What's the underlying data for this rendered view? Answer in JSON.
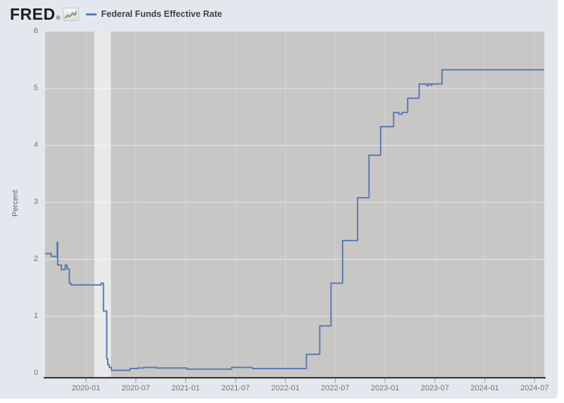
{
  "header": {
    "logo_text": "FRED",
    "registered_mark": "®",
    "logo_icon": "fred-sparkline-icon",
    "legend": {
      "label": "Federal Funds Effective Rate"
    }
  },
  "chart_data": {
    "type": "line",
    "title": "Federal Funds Effective Rate",
    "ylabel": "Percent",
    "xlabel": "",
    "ylim": [
      0,
      6
    ],
    "y_ticks": [
      "0",
      "1",
      "2",
      "3",
      "4",
      "5",
      "6"
    ],
    "x_ticks": [
      "2020-01",
      "2020-07",
      "2021-01",
      "2021-07",
      "2022-01",
      "2022-07",
      "2023-01",
      "2023-07",
      "2024-01",
      "2024-07"
    ],
    "x_range": [
      "2019-08-03",
      "2024-08-06"
    ],
    "grid": "horizontal major gridlines, faint vertical gridlines at ticks",
    "legend_position": "top header, left",
    "step_mode": "after",
    "series": [
      {
        "name": "Federal Funds Effective Rate",
        "units": "Percent",
        "color": "#597db2",
        "points": [
          [
            "2019-08-03",
            2.1
          ],
          [
            "2019-08-26",
            2.05
          ],
          [
            "2019-09-17",
            2.3
          ],
          [
            "2019-09-19",
            1.9
          ],
          [
            "2019-10-02",
            1.82
          ],
          [
            "2019-10-16",
            1.9
          ],
          [
            "2019-10-23",
            1.83
          ],
          [
            "2019-10-31",
            1.58
          ],
          [
            "2019-11-07",
            1.55
          ],
          [
            "2020-02-26",
            1.58
          ],
          [
            "2020-03-04",
            1.09
          ],
          [
            "2020-03-16",
            0.25
          ],
          [
            "2020-03-20",
            0.15
          ],
          [
            "2020-03-25",
            0.1
          ],
          [
            "2020-04-03",
            0.05
          ],
          [
            "2020-06-10",
            0.08
          ],
          [
            "2020-07-08",
            0.09
          ],
          [
            "2020-08-01",
            0.1
          ],
          [
            "2020-09-15",
            0.09
          ],
          [
            "2021-01-05",
            0.07
          ],
          [
            "2021-03-01",
            0.07
          ],
          [
            "2021-06-17",
            0.1
          ],
          [
            "2021-09-01",
            0.08
          ],
          [
            "2022-03-17",
            0.33
          ],
          [
            "2022-05-05",
            0.83
          ],
          [
            "2022-06-16",
            1.58
          ],
          [
            "2022-07-28",
            2.33
          ],
          [
            "2022-09-22",
            3.08
          ],
          [
            "2022-11-03",
            3.83
          ],
          [
            "2022-12-15",
            4.33
          ],
          [
            "2023-02-02",
            4.58
          ],
          [
            "2023-02-21",
            4.55
          ],
          [
            "2023-03-02",
            4.58
          ],
          [
            "2023-03-23",
            4.83
          ],
          [
            "2023-05-04",
            5.08
          ],
          [
            "2023-06-02",
            5.05
          ],
          [
            "2023-06-07",
            5.08
          ],
          [
            "2023-06-16",
            5.06
          ],
          [
            "2023-06-21",
            5.08
          ],
          [
            "2023-07-27",
            5.33
          ],
          [
            "2024-08-06",
            5.33
          ]
        ]
      }
    ],
    "recession_band": {
      "start": "2020-02-01",
      "end": "2020-04-01",
      "color": "#eae9e9"
    },
    "colors": {
      "panel_bg": "#e3e8ee",
      "plot_bg": "#c9c6c6",
      "line": "#597db2",
      "axis_line": "#3b3b3b",
      "tick_mark": "#9a9a9a",
      "tick_label": "#757575",
      "gridline": "#ffffff"
    }
  }
}
